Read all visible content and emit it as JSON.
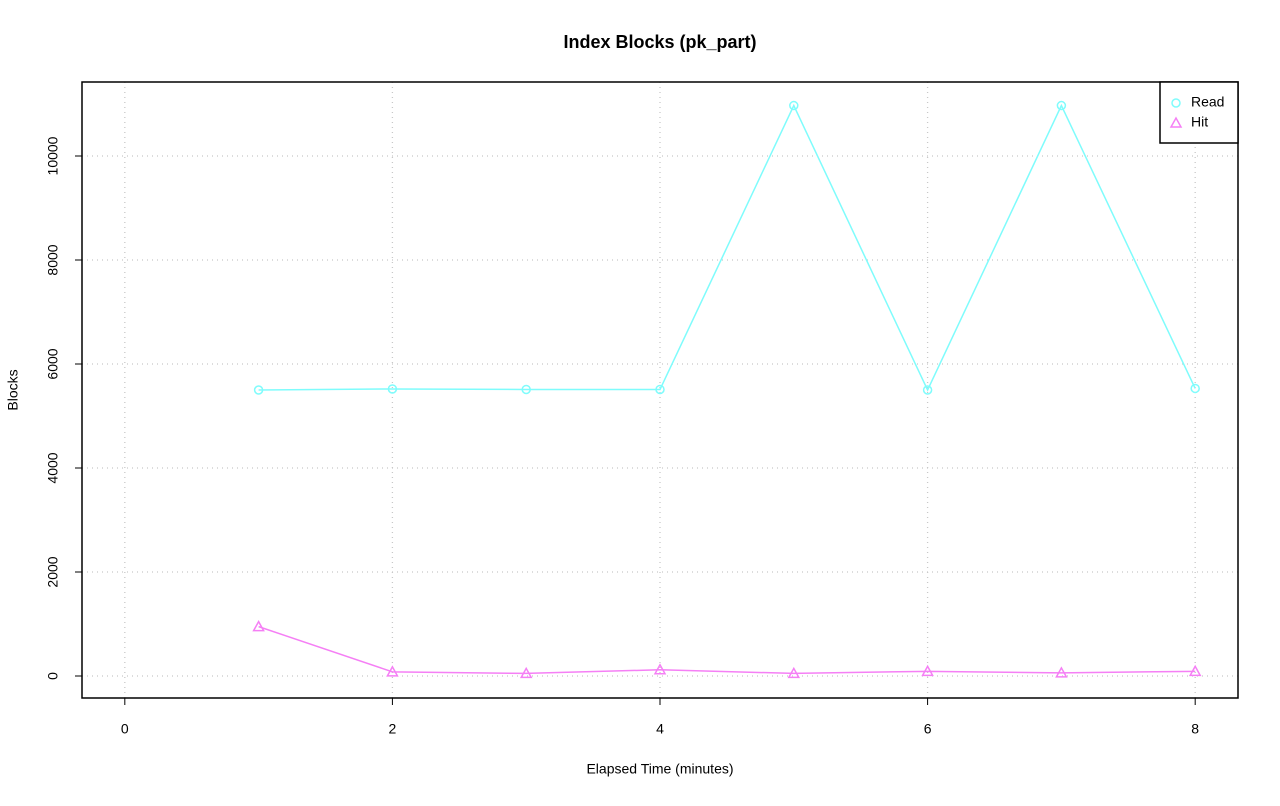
{
  "chart_data": {
    "type": "line",
    "title": "Index Blocks (pk_part)",
    "x_label": "Elapsed Time (minutes)",
    "y_label": "Blocks",
    "x": [
      1,
      2,
      3,
      4,
      5,
      6,
      7,
      8
    ],
    "series": [
      {
        "name": "Read",
        "color": "#7ffcfc",
        "marker": "circle",
        "values": [
          5500,
          5520,
          5510,
          5510,
          10970,
          5500,
          10970,
          5530
        ]
      },
      {
        "name": "Hit",
        "color": "#f57ff5",
        "marker": "triangle",
        "values": [
          950,
          80,
          50,
          120,
          50,
          90,
          60,
          90
        ]
      }
    ],
    "xlim": [
      -0.32,
      8.32
    ],
    "xticks": [
      0,
      2,
      4,
      6,
      8
    ],
    "ylim": [
      -423,
      11423
    ],
    "yticks": [
      0,
      2000,
      4000,
      6000,
      8000,
      10000
    ],
    "grid": true,
    "legend": "top-right"
  }
}
